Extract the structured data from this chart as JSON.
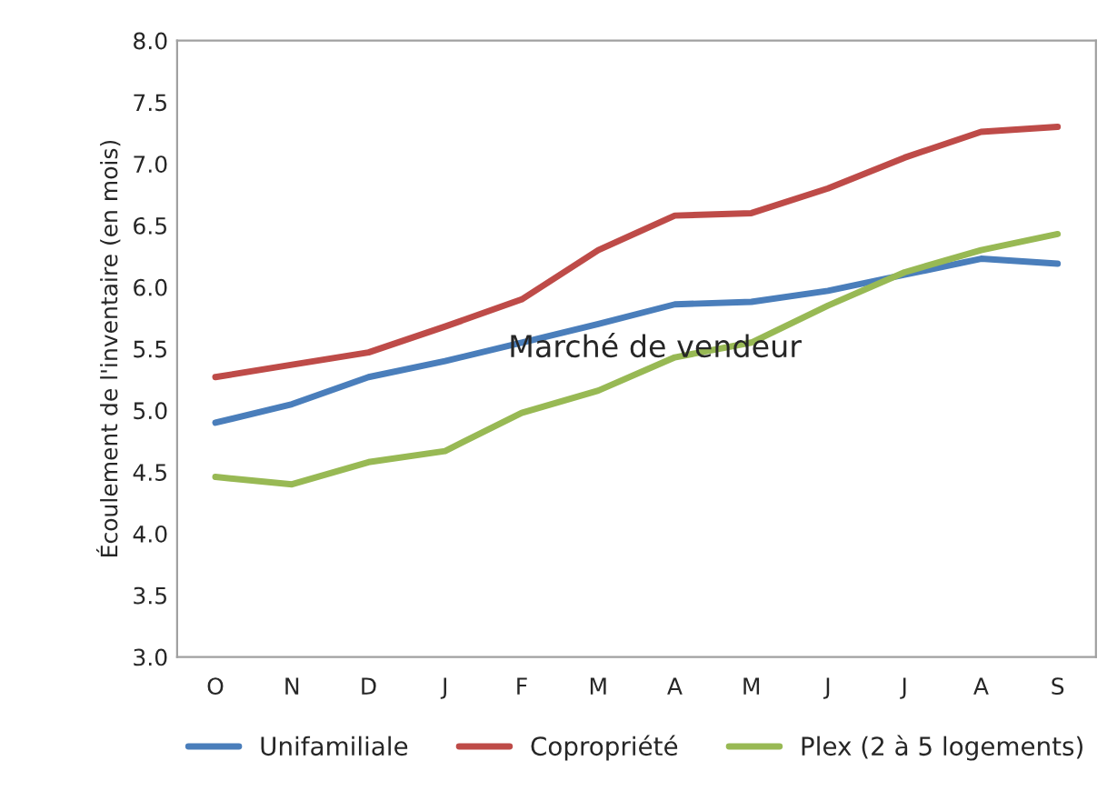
{
  "chart_data": {
    "type": "line",
    "ylabel": "Écoulement de l'inventaire (en mois)",
    "categories": [
      "O",
      "N",
      "D",
      "J",
      "F",
      "M",
      "A",
      "M",
      "J",
      "J",
      "A",
      "S"
    ],
    "series": [
      {
        "name": "Unifamiliale",
        "color": "#4a7ebb",
        "values": [
          4.9,
          5.05,
          5.27,
          5.4,
          5.55,
          5.7,
          5.86,
          5.88,
          5.97,
          6.1,
          6.23,
          6.19
        ]
      },
      {
        "name": "Copropriété",
        "color": "#be4b48",
        "values": [
          5.27,
          5.37,
          5.47,
          5.68,
          5.9,
          6.3,
          6.58,
          6.6,
          6.8,
          7.05,
          7.26,
          7.3
        ]
      },
      {
        "name": "Plex (2 à 5 logements)",
        "color": "#98b954",
        "values": [
          4.46,
          4.4,
          4.58,
          4.67,
          4.98,
          5.16,
          5.43,
          5.55,
          5.85,
          6.12,
          6.3,
          6.43
        ]
      }
    ],
    "ylim": [
      3.0,
      8.0
    ],
    "yticks": [
      {
        "value": 3.0,
        "label": "3.0"
      },
      {
        "value": 3.5,
        "label": "3.5"
      },
      {
        "value": 4.0,
        "label": "4.0"
      },
      {
        "value": 4.5,
        "label": "4.5"
      },
      {
        "value": 5.0,
        "label": "5.0"
      },
      {
        "value": 5.5,
        "label": "5.5"
      },
      {
        "value": 6.0,
        "label": "6.0"
      },
      {
        "value": 6.5,
        "label": "6.5"
      },
      {
        "value": 7.0,
        "label": "7.0"
      },
      {
        "value": 7.5,
        "label": "7.5"
      },
      {
        "value": 8.0,
        "label": "8.0"
      }
    ],
    "annotations": [
      "Marché de vendeur"
    ],
    "legend": "bottom",
    "grid": false,
    "marker": "none",
    "line_style": "solid"
  }
}
